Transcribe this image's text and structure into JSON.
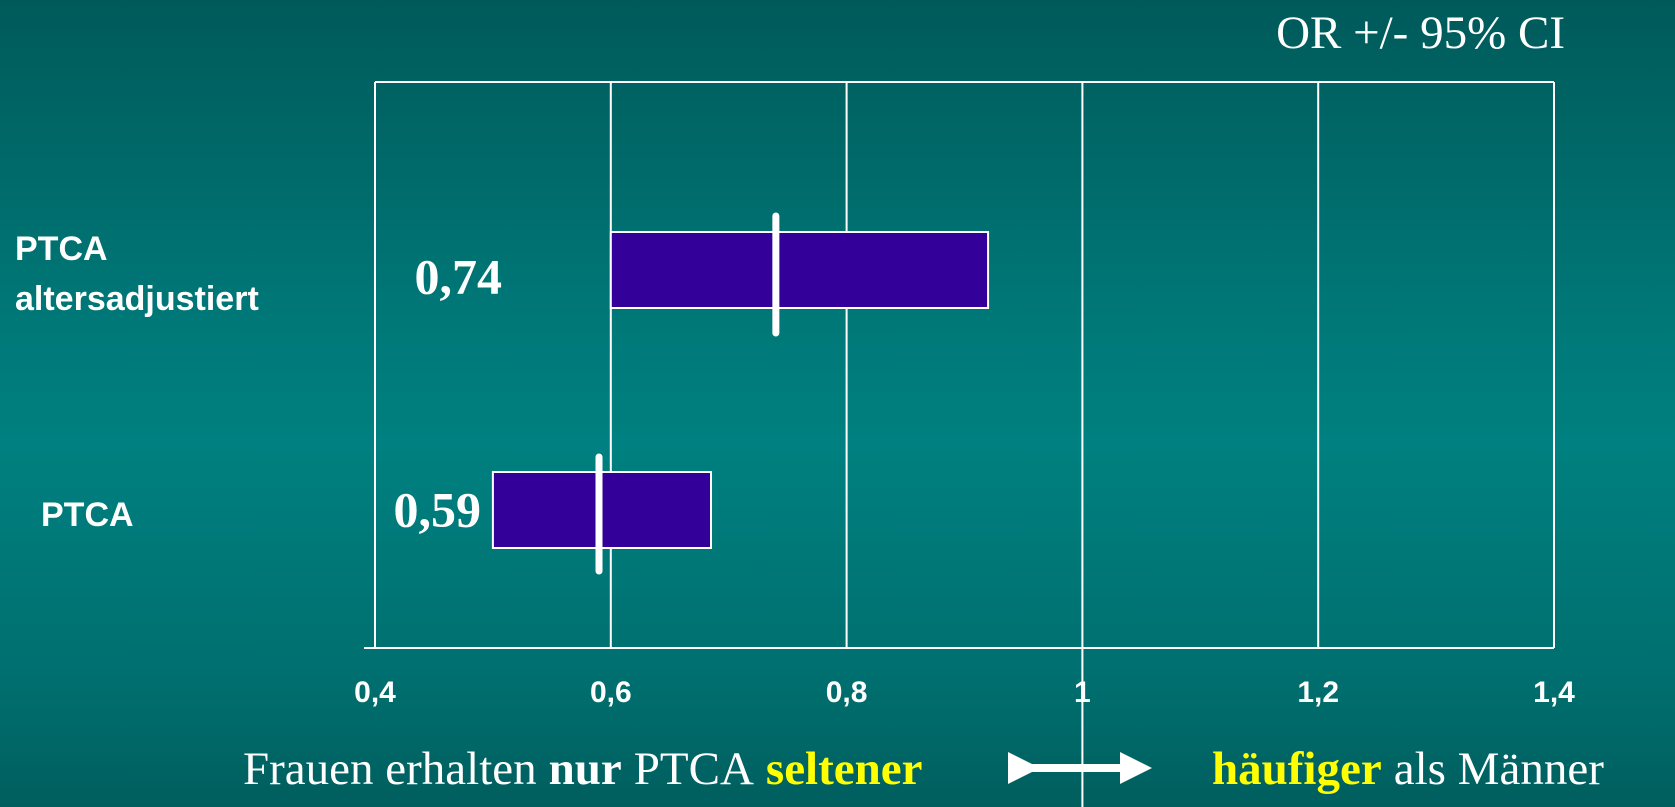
{
  "chart_data": {
    "type": "range-bar",
    "title": "OR +/- 95% CI",
    "categories": [
      "PTCA altersadjustiert",
      "PTCA"
    ],
    "values": [
      0.74,
      0.59
    ],
    "value_labels": [
      "0,74",
      "0,59"
    ],
    "lower": [
      0.6,
      0.5
    ],
    "upper": [
      0.92,
      0.685
    ],
    "color": "#330099",
    "xlim": [
      0.4,
      1.4
    ],
    "xticks": [
      {
        "value": 0.4,
        "label": "0,4"
      },
      {
        "value": 0.6,
        "label": "0,6"
      },
      {
        "value": 0.8,
        "label": "0,8"
      },
      1,
      {
        "value": 1.2,
        "label": "1,2"
      },
      {
        "value": 1.4,
        "label": "1,4"
      }
    ],
    "grid": true,
    "annotation": {
      "left": [
        "Frauen erhalten",
        "nur",
        "PTCA",
        "seltener"
      ],
      "right": [
        "häufiger",
        "als Männer"
      ]
    }
  }
}
